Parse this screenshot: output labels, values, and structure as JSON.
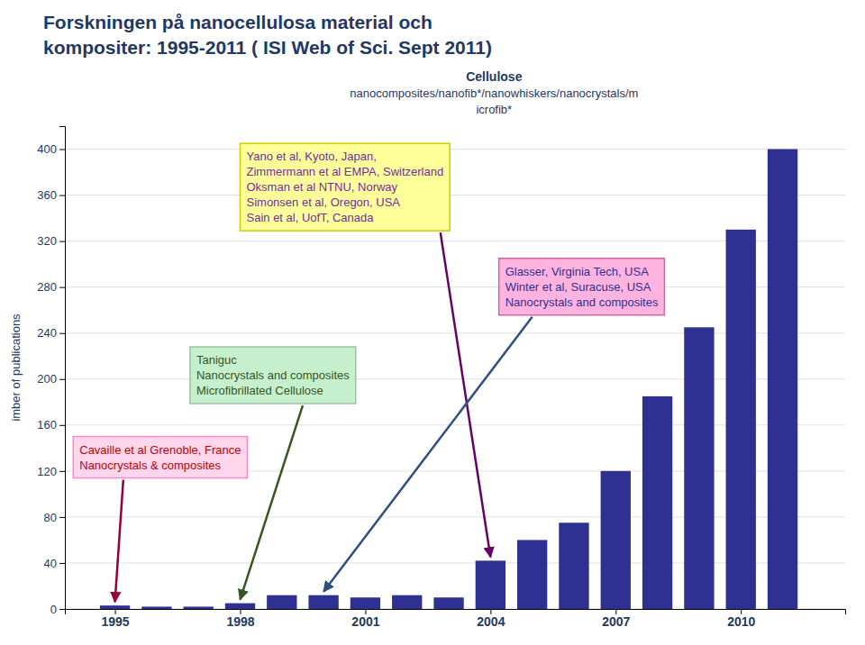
{
  "chart_data": {
    "type": "bar",
    "title": [
      "Forskningen på nanocellulosa material och",
      "kompositer: 1995-2011 ( ISI Web of Sci. Sept 2011)"
    ],
    "subtitle": [
      "Cellulose",
      "nanocomposites/nanofib*/nanowhiskers/nanocrystals/m",
      "icrofib*"
    ],
    "ylabel": "imber of publications",
    "x": [
      1995,
      1996,
      1997,
      1998,
      1999,
      2000,
      2001,
      2002,
      2003,
      2004,
      2005,
      2006,
      2007,
      2008,
      2009,
      2010,
      2011
    ],
    "values": [
      3,
      2,
      2,
      5,
      12,
      12,
      10,
      12,
      10,
      42,
      60,
      75,
      120,
      185,
      245,
      330,
      400
    ],
    "color": "#2E3192",
    "xlim": [
      1993.8,
      2012.5
    ],
    "xticks": [
      1995,
      1998,
      2001,
      2004,
      2007,
      2010
    ],
    "ylim": [
      0,
      420
    ],
    "yticks": [
      0,
      40,
      80,
      120,
      160,
      200,
      240,
      280,
      320,
      360,
      400
    ],
    "grid": true,
    "annotations": [
      [
        "Yano et al, Kyoto, Japan,",
        "Zimmermann et al EMPA, Switzerland",
        "Oksman et al NTNU, Norway",
        "Simonsen et al, Oregon, USA",
        "Sain et al, UofT, Canada"
      ],
      [
        "Glasser, Virginia Tech, USA",
        "Winter et al, Suracuse, USA",
        "Nanocrystals and composites"
      ],
      [
        "Taniguc",
        "Nanocrystals and composites",
        "Microfibrillated Cellulose"
      ],
      [
        "Cavaille et al Grenoble, France",
        "Nanocrystals & composites"
      ]
    ]
  }
}
